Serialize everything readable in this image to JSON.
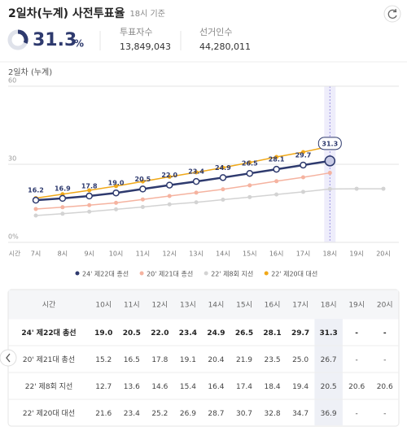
{
  "header": {
    "title": "2일차(누계) 사전투표율",
    "basis": "18시 기준"
  },
  "summary": {
    "rate": 31.3,
    "rate_unit": "%",
    "voters_label": "투표자수",
    "voters": "13,849,043",
    "electorate_label": "선거인수",
    "electorate": "44,280,011"
  },
  "chart_data": {
    "type": "line",
    "title": "2일차 (누계)",
    "x_label": "시간",
    "categories": [
      "7시",
      "8시",
      "9시",
      "10시",
      "11시",
      "12시",
      "13시",
      "14시",
      "15시",
      "16시",
      "17시",
      "18시",
      "19시",
      "20시"
    ],
    "ylim": [
      0,
      60
    ],
    "yticks": [
      {
        "value": 0,
        "label": "0%"
      },
      30,
      60
    ],
    "grid": true,
    "highlight": "18시",
    "series": [
      {
        "name": "24' 제22대 총선",
        "color": "#2e3a6e",
        "values": [
          16.2,
          16.9,
          17.8,
          19.0,
          20.5,
          22.0,
          23.4,
          24.9,
          26.5,
          28.1,
          29.7,
          31.3,
          null,
          null
        ],
        "value_labels": [
          "16.2",
          "16.9",
          "17.8",
          "19.0",
          "20.5",
          "22.0",
          "23.4",
          "24.9",
          "26.5",
          "28.1",
          "29.7",
          "31.3",
          null,
          null
        ]
      },
      {
        "name": "20' 제21대 총선",
        "color": "#f5b3a0",
        "values": [
          12.8,
          13.5,
          14.3,
          15.2,
          16.5,
          17.8,
          19.1,
          20.4,
          21.9,
          23.5,
          25.0,
          26.7,
          null,
          null
        ]
      },
      {
        "name": "22' 제8회 지선",
        "color": "#d3d3d3",
        "values": [
          10.3,
          11.0,
          11.8,
          12.7,
          13.6,
          14.6,
          15.4,
          16.4,
          17.4,
          18.4,
          19.4,
          20.5,
          20.6,
          20.6
        ]
      },
      {
        "name": "22' 제20대 대선",
        "color": "#f0a818",
        "values": [
          17.0,
          18.5,
          20.0,
          21.6,
          23.4,
          25.2,
          26.9,
          28.7,
          30.7,
          32.8,
          34.7,
          36.9,
          null,
          null
        ]
      }
    ]
  },
  "table": {
    "header": [
      "시간",
      "10시",
      "11시",
      "12시",
      "13시",
      "14시",
      "15시",
      "16시",
      "17시",
      "18시",
      "19시",
      "20시"
    ],
    "rows": [
      [
        "24' 제22대 총선",
        "19.0",
        "20.5",
        "22.0",
        "23.4",
        "24.9",
        "26.5",
        "28.1",
        "29.7",
        "31.3",
        "-",
        "-"
      ],
      [
        "20' 제21대 총선",
        "15.2",
        "16.5",
        "17.8",
        "19.1",
        "20.4",
        "21.9",
        "23.5",
        "25.0",
        "26.7",
        "-",
        "-"
      ],
      [
        "22' 제8회 지선",
        "12.7",
        "13.6",
        "14.6",
        "15.4",
        "16.4",
        "17.4",
        "18.4",
        "19.4",
        "20.5",
        "20.6",
        "20.6"
      ],
      [
        "22' 제20대 대선",
        "21.6",
        "23.4",
        "25.2",
        "26.9",
        "28.7",
        "30.7",
        "32.8",
        "34.7",
        "36.9",
        "-",
        "-"
      ]
    ]
  }
}
